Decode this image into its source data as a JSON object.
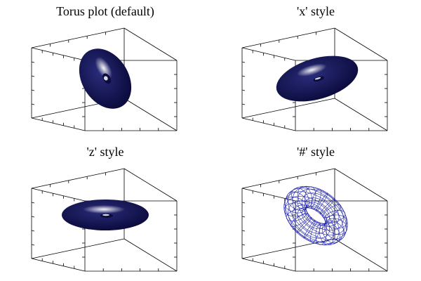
{
  "figure": {
    "panels": [
      {
        "title": "Torus plot (default)",
        "style": "default",
        "render": "shaded"
      },
      {
        "title": "'x' style",
        "style": "x",
        "render": "shaded"
      },
      {
        "title": "'z' style",
        "style": "z",
        "render": "shaded"
      },
      {
        "title": "'#' style",
        "style": "#",
        "render": "wire"
      }
    ]
  },
  "colors": {
    "surface_dark": "#0b0b3d",
    "surface_mid": "#2a2c7a",
    "surface_highlight": "#ffffff",
    "wire": "#1e22a8",
    "box": "#000000"
  }
}
